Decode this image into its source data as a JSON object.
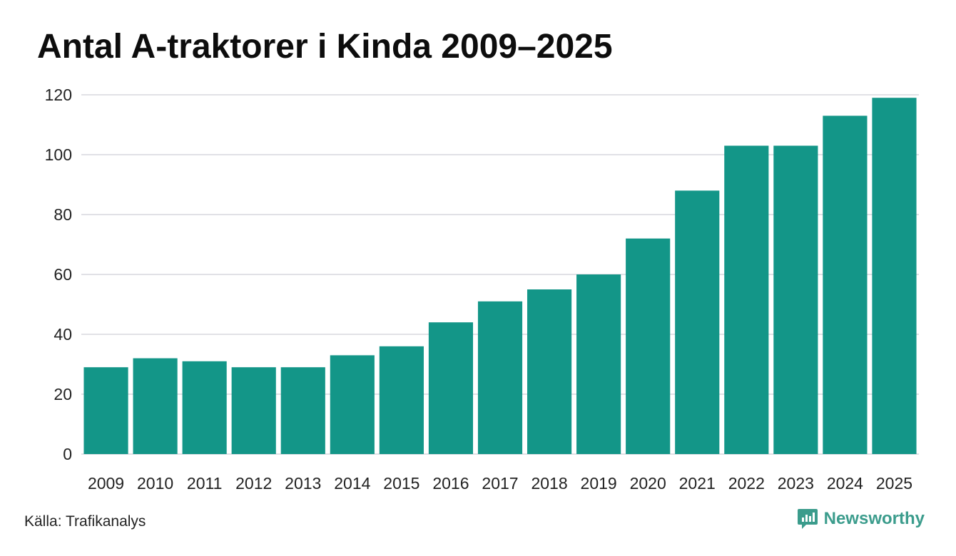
{
  "chart_data": {
    "type": "bar",
    "title": "Antal A-traktorer i Kinda 2009–2025",
    "xlabel": "",
    "ylabel": "",
    "ylim": [
      0,
      120
    ],
    "yticks": [
      0,
      20,
      40,
      60,
      80,
      100,
      120
    ],
    "categories": [
      "2009",
      "2010",
      "2011",
      "2012",
      "2013",
      "2014",
      "2015",
      "2016",
      "2017",
      "2018",
      "2019",
      "2020",
      "2021",
      "2022",
      "2023",
      "2024",
      "2025"
    ],
    "values": [
      29,
      32,
      31,
      29,
      29,
      33,
      36,
      44,
      51,
      55,
      60,
      72,
      88,
      103,
      103,
      113,
      119
    ],
    "grid": true,
    "legend": "none"
  },
  "colors": {
    "bar": "#139688",
    "grid": "#e1e1e6",
    "brand": "#3b9c8c"
  },
  "footer": {
    "source": "Källa: Trafikanalys",
    "brand_name": "Newsworthy",
    "brand_icon": "newsworthy-logo-icon"
  }
}
